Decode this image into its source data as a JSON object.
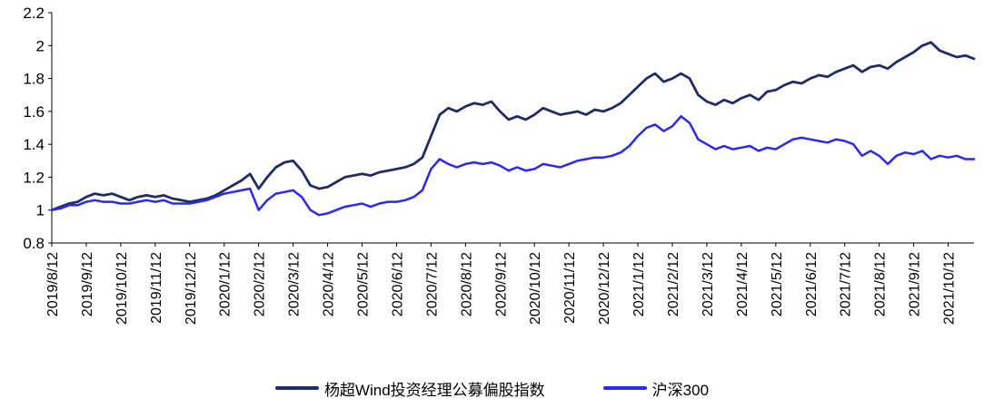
{
  "chart_data": {
    "type": "line",
    "title": "",
    "xlabel": "",
    "ylabel": "",
    "ylim": [
      0.8,
      2.2
    ],
    "y_tick_labels": [
      "0.8",
      "1",
      "1.2",
      "1.4",
      "1.6",
      "1.8",
      "2",
      "2.2"
    ],
    "x_tick_labels": [
      "2019/8/12",
      "2019/9/12",
      "2019/10/12",
      "2019/11/12",
      "2019/12/12",
      "2020/1/12",
      "2020/2/12",
      "2020/3/12",
      "2020/4/12",
      "2020/5/12",
      "2020/6/12",
      "2020/7/12",
      "2020/8/12",
      "2020/9/12",
      "2020/10/12",
      "2020/11/12",
      "2020/12/12",
      "2021/1/12",
      "2021/2/12",
      "2021/3/12",
      "2021/4/12",
      "2021/5/12",
      "2021/6/12",
      "2021/7/12",
      "2021/8/12",
      "2021/9/12",
      "2021/10/12"
    ],
    "points_per_month": 4,
    "grid": false,
    "legend_position": "bottom",
    "series": [
      {
        "name": "杨超Wind投资经理公募偏股指数",
        "color": "#1f2d66",
        "values": [
          1.0,
          1.02,
          1.04,
          1.05,
          1.08,
          1.1,
          1.09,
          1.1,
          1.08,
          1.06,
          1.08,
          1.09,
          1.08,
          1.09,
          1.07,
          1.06,
          1.05,
          1.06,
          1.07,
          1.09,
          1.12,
          1.15,
          1.18,
          1.22,
          1.13,
          1.2,
          1.26,
          1.29,
          1.3,
          1.24,
          1.15,
          1.13,
          1.14,
          1.17,
          1.2,
          1.21,
          1.22,
          1.21,
          1.23,
          1.24,
          1.25,
          1.26,
          1.28,
          1.32,
          1.45,
          1.58,
          1.62,
          1.6,
          1.63,
          1.65,
          1.64,
          1.66,
          1.6,
          1.55,
          1.57,
          1.55,
          1.58,
          1.62,
          1.6,
          1.58,
          1.59,
          1.6,
          1.58,
          1.61,
          1.6,
          1.62,
          1.65,
          1.7,
          1.75,
          1.8,
          1.83,
          1.78,
          1.8,
          1.83,
          1.8,
          1.7,
          1.66,
          1.64,
          1.67,
          1.65,
          1.68,
          1.7,
          1.67,
          1.72,
          1.73,
          1.76,
          1.78,
          1.77,
          1.8,
          1.82,
          1.81,
          1.84,
          1.86,
          1.88,
          1.84,
          1.87,
          1.88,
          1.86,
          1.9,
          1.93,
          1.96,
          2.0,
          2.02,
          1.97,
          1.95,
          1.93,
          1.94,
          1.92
        ]
      },
      {
        "name": "沪深300",
        "color": "#2929f0",
        "values": [
          1.0,
          1.01,
          1.03,
          1.03,
          1.05,
          1.06,
          1.05,
          1.05,
          1.04,
          1.04,
          1.05,
          1.06,
          1.05,
          1.06,
          1.04,
          1.04,
          1.04,
          1.05,
          1.06,
          1.08,
          1.1,
          1.11,
          1.12,
          1.13,
          1.0,
          1.06,
          1.1,
          1.11,
          1.12,
          1.08,
          1.0,
          0.97,
          0.98,
          1.0,
          1.02,
          1.03,
          1.04,
          1.02,
          1.04,
          1.05,
          1.05,
          1.06,
          1.08,
          1.12,
          1.25,
          1.31,
          1.28,
          1.26,
          1.28,
          1.29,
          1.28,
          1.29,
          1.27,
          1.24,
          1.26,
          1.24,
          1.25,
          1.28,
          1.27,
          1.26,
          1.28,
          1.3,
          1.31,
          1.32,
          1.32,
          1.33,
          1.35,
          1.39,
          1.45,
          1.5,
          1.52,
          1.48,
          1.51,
          1.57,
          1.53,
          1.43,
          1.4,
          1.37,
          1.39,
          1.37,
          1.38,
          1.39,
          1.36,
          1.38,
          1.37,
          1.4,
          1.43,
          1.44,
          1.43,
          1.42,
          1.41,
          1.43,
          1.42,
          1.4,
          1.33,
          1.36,
          1.33,
          1.28,
          1.33,
          1.35,
          1.34,
          1.36,
          1.31,
          1.33,
          1.32,
          1.33,
          1.31,
          1.31
        ]
      }
    ]
  }
}
